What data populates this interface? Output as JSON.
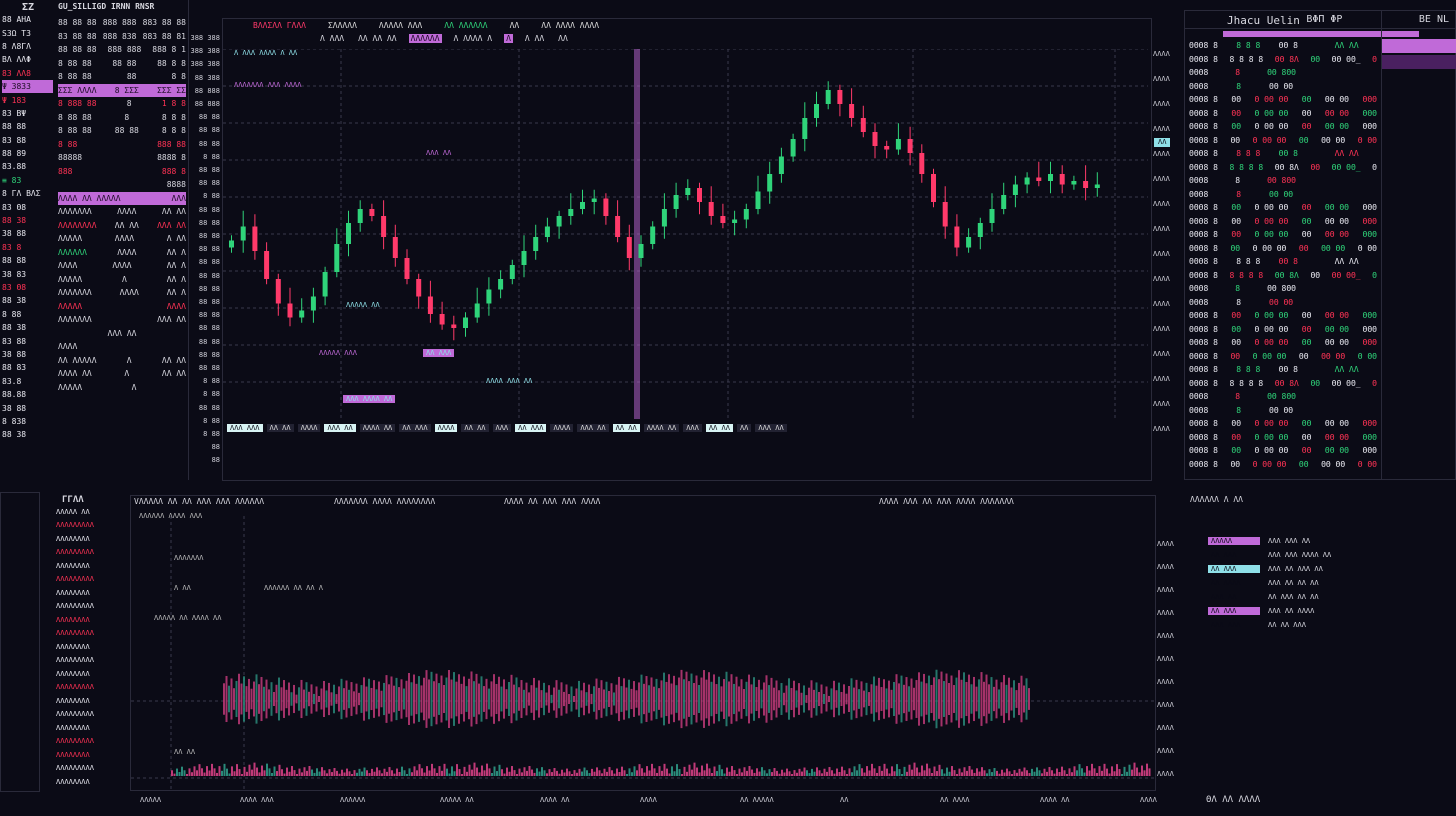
{
  "colors": {
    "bg": "#0b0b16",
    "up": "#2fd47a",
    "down": "#ff3a6a",
    "accent": "#c06ad8",
    "cyan": "#8fe0e8"
  },
  "left_mini": {
    "title": "ΣΖ",
    "rows": [
      {
        "t": "88 AHA",
        "c": "wht"
      },
      {
        "t": "S3Ω T3",
        "c": "wht"
      },
      {
        "t": "8 Λ8ΓΛ",
        "c": "wht"
      },
      {
        "t": "ΒΛ ΛΛΦ",
        "c": "wht"
      },
      {
        "t": "83 ΛΛ8",
        "c": "red"
      },
      {
        "t": "Ψ 3833",
        "c": "hl"
      },
      {
        "t": "Ψ 183",
        "c": "red"
      },
      {
        "t": "83 ΒΨ",
        "c": "wht"
      },
      {
        "t": "88 88",
        "c": "wht"
      },
      {
        "t": "83 88",
        "c": "wht"
      },
      {
        "t": "88 89",
        "c": "wht"
      },
      {
        "t": "83.88",
        "c": "wht"
      },
      {
        "t": "≡ 83",
        "c": "green"
      },
      {
        "t": "8 ΓΛ ΒΛΣ",
        "c": "wht"
      },
      {
        "t": "83 Θ8",
        "c": "wht"
      },
      {
        "t": "88 38",
        "c": "red"
      },
      {
        "t": "38 88",
        "c": "wht"
      },
      {
        "t": "83 8",
        "c": "red"
      },
      {
        "t": "88 88",
        "c": "wht"
      },
      {
        "t": "38 83",
        "c": "wht"
      },
      {
        "t": "83 Θ8",
        "c": "red"
      },
      {
        "t": "88 38",
        "c": "wht"
      },
      {
        "t": "8 88",
        "c": "wht"
      },
      {
        "t": "88 38",
        "c": "wht"
      },
      {
        "t": "83 88",
        "c": "wht"
      },
      {
        "t": "38 88",
        "c": "wht"
      },
      {
        "t": "88 83",
        "c": "wht"
      },
      {
        "t": "83.8",
        "c": "wht"
      },
      {
        "t": "88.88",
        "c": "wht"
      },
      {
        "t": "38 88",
        "c": "wht"
      },
      {
        "t": "8 838",
        "c": "wht"
      },
      {
        "t": "88 38",
        "c": "wht"
      }
    ]
  },
  "orderbook": {
    "title": "GU_SILLIGD IRNN RNSR",
    "header": [
      "88 88 88",
      "888 888",
      "883 88 88"
    ],
    "rows": [
      {
        "a": "83 88 88",
        "b": "888 838",
        "c": "883 88 81",
        "s": "hl"
      },
      {
        "a": "88 88 88",
        "b": "888 888",
        "c": "888 8 1",
        "s": ""
      },
      {
        "a": "8 88 88",
        "b": "88 88",
        "c": "88 8 8",
        "s": ""
      },
      {
        "a": "8 88 88",
        "b": "88",
        "c": "8 8",
        "s": ""
      },
      {
        "a": "ΣΣΣ ΛΛΛΛ",
        "b": "8 ΣΣΣ",
        "c": "ΣΣΣ ΣΣ",
        "s": "bar"
      },
      {
        "a": "8 888 88",
        "b": "8",
        "c": "1 8 8",
        "s": "red"
      },
      {
        "a": "8 88 88",
        "b": "8",
        "c": "8 8 8",
        "s": ""
      },
      {
        "a": "8 88 88",
        "b": "88 88",
        "c": "8 8 8",
        "s": ""
      },
      {
        "a": "8 88",
        "b": "",
        "c": "888 88",
        "s": "red"
      },
      {
        "a": "88888",
        "b": "",
        "c": "8888 8",
        "s": ""
      },
      {
        "a": "888",
        "b": "",
        "c": "888 8",
        "s": "red"
      },
      {
        "a": "",
        "b": "",
        "c": "8888",
        "s": ""
      },
      {
        "a": "ΛΛΛΛ ΛΛ ΛΛΛΛΛ",
        "b": "",
        "c": "ΛΛΛ",
        "s": "bar"
      },
      {
        "a": "ΛΛΛΛΛΛΛ",
        "b": "ΛΛΛΛ",
        "c": "ΛΛ ΛΛ",
        "s": ""
      },
      {
        "a": "ΛΛΛΛΛΛΛΛ",
        "b": "ΛΛ ΛΛ",
        "c": "ΛΛΛ ΛΛ",
        "s": "red"
      },
      {
        "a": "ΛΛΛΛΛ",
        "b": "ΛΛΛΛ",
        "c": "Λ ΛΛ",
        "s": ""
      },
      {
        "a": "ΛΛΛΛΛΛ",
        "b": "ΛΛΛΛ",
        "c": "ΛΛ Λ",
        "s": "green"
      },
      {
        "a": "ΛΛΛΛ",
        "b": "ΛΛΛΛ",
        "c": "ΛΛ Λ",
        "s": ""
      },
      {
        "a": "ΛΛΛΛΛ",
        "b": "Λ",
        "c": "ΛΛ Λ",
        "s": ""
      },
      {
        "a": "ΛΛΛΛΛΛΛ",
        "b": "ΛΛΛΛ",
        "c": "ΛΛ Λ",
        "s": ""
      },
      {
        "a": "ΛΛΛΛΛ",
        "b": "",
        "c": "ΛΛΛΛ",
        "s": "red"
      },
      {
        "a": "ΛΛΛΛΛΛΛ",
        "b": "",
        "c": "ΛΛΛ ΛΛ",
        "s": ""
      },
      {
        "a": "",
        "b": "ΛΛΛ ΛΛ",
        "c": "",
        "s": ""
      },
      {
        "a": "ΛΛΛΛ",
        "b": "",
        "c": "",
        "s": ""
      },
      {
        "a": "ΛΛ ΛΛΛΛΛ",
        "b": "Λ",
        "c": "ΛΛ ΛΛ",
        "s": ""
      },
      {
        "a": "ΛΛΛΛ ΛΛ",
        "b": "Λ",
        "c": "ΛΛ ΛΛ",
        "s": ""
      },
      {
        "a": "ΛΛΛΛΛ",
        "b": "Λ",
        "c": "",
        "s": ""
      }
    ]
  },
  "chart": {
    "toolbar": [
      "ΒΛΛΣΛΛ ΓΛΛΛ",
      "ΣΛΛΛΛΛ",
      "ΛΛΛΛΛ ΛΛΛ",
      "ΛΛ ΛΛΛΛΛΛ",
      "ΛΛ",
      "ΛΛ ΛΛΛΛ ΛΛΛΛ"
    ],
    "tabs": [
      "Λ ΛΛΛ",
      "ΛΛ ΛΛ ΛΛ",
      "ΛΛΛΛΛΛ",
      "Λ ΛΛΛΛ Λ",
      "Λ",
      "Λ ΛΛ",
      "ΛΛ"
    ],
    "left_axis": [
      "388 388",
      "388 388",
      "388 388",
      "88 388",
      "88 888",
      "88 888",
      "88 88",
      "88 88",
      "88 88",
      "8 88",
      "88 88",
      "88 88",
      "8 88",
      "88 88",
      "88 88",
      "88 88",
      "88 88",
      "88 88",
      "88 88",
      "88 88",
      "88 88",
      "88 88",
      "88 88",
      "88 88",
      "88 88",
      "88 88",
      "8 88",
      "8 88",
      "88 88",
      "8 88",
      "8 88",
      "88",
      "88"
    ],
    "right_axis": [
      "ΛΛΛΛ",
      "ΛΛΛΛ",
      "ΛΛΛΛ",
      "ΛΛΛΛ",
      "ΛΛΛΛ",
      "ΛΛΛΛ",
      "ΛΛΛΛ",
      "ΛΛΛΛ",
      "ΛΛΛΛ",
      "ΛΛΛΛ",
      "ΛΛΛΛ",
      "ΛΛΛΛ",
      "ΛΛΛΛ",
      "ΛΛΛΛ",
      "ΛΛΛΛ",
      "ΛΛΛΛ"
    ],
    "price_tag": "ΛΛ",
    "annotations": [
      "Λ ΛΛΛ ΛΛΛΛ Λ ΛΛ",
      "ΛΛΛΛΛΛΛ ΛΛΛ ΛΛΛΛ",
      "ΛΛΛΛΛ ΛΛ",
      "ΛΛ ΛΛΛ",
      "ΛΛΛΛΛ ΛΛΛ",
      "ΛΛΛ ΛΛΛΛ ΛΛ",
      "ΛΛΛΛ ΛΛΛ ΛΛ",
      "ΛΛΛ ΛΛ"
    ],
    "closes": [
      51,
      55,
      48,
      40,
      33,
      29,
      31,
      35,
      42,
      50,
      56,
      60,
      58,
      52,
      46,
      40,
      35,
      30,
      27,
      26,
      29,
      33,
      37,
      40,
      44,
      48,
      52,
      55,
      58,
      60,
      62,
      63,
      58,
      52,
      46,
      50,
      55,
      60,
      64,
      66,
      62,
      58,
      56,
      57,
      60,
      65,
      70,
      75,
      80,
      86,
      90,
      94,
      90,
      86,
      82,
      78,
      77,
      80,
      76,
      70,
      62,
      55,
      49,
      52,
      56,
      60,
      64,
      67,
      69,
      68,
      70,
      67,
      68,
      66,
      67
    ],
    "bottom_strip": [
      "ΛΛΛ ΛΛΛ",
      "ΛΛ ΛΛ",
      "ΛΛΛΛ",
      "ΛΛΛ ΛΛ",
      "ΛΛΛΛ ΛΛ",
      "ΛΛ ΛΛΛ",
      "ΛΛΛΛ",
      "ΛΛ ΛΛ",
      "ΛΛΛ",
      "ΛΛ ΛΛΛ",
      "ΛΛΛΛ",
      "ΛΛΛ ΛΛ",
      "ΛΛ ΛΛ",
      "ΛΛΛΛ ΛΛ",
      "ΛΛΛ",
      "ΛΛ ΛΛ",
      "ΛΛ",
      "ΛΛΛ ΛΛ"
    ]
  },
  "right_panel": {
    "title": "Jhacu Uelin",
    "badge": "ΒΦΠ ΦΡ",
    "side": "ΒΕ ΝL",
    "rows": [
      [
        "ΘΘΘ8 8",
        "8 8 8",
        "ΘΘ 8",
        "",
        "ΛΛ ΛΛ",
        ""
      ],
      [
        "ΘΘΘ8 8",
        "8 8 8 8",
        "ΘΘ 8Λ",
        "ΘΘ",
        "ΘΘ ΘΘ_",
        "Θ"
      ],
      [
        "ΘΘΘ8",
        "8",
        "ΘΘ 8ΘΘ",
        "",
        "",
        ""
      ],
      [
        "ΘΘΘ8",
        "8",
        "ΘΘ ΘΘ",
        "",
        "",
        ""
      ],
      [
        "ΘΘΘ8 8",
        "ΘΘ",
        "Θ ΘΘ ΘΘ",
        "ΘΘ",
        "ΘΘ ΘΘ",
        "ΘΘΘ"
      ],
      [
        "ΘΘΘ8 8",
        "ΘΘ",
        "Θ ΘΘ ΘΘ",
        "ΘΘ",
        "ΘΘ ΘΘ",
        "ΘΘΘ"
      ],
      [
        "ΘΘΘ8 8",
        "ΘΘ",
        "Θ ΘΘ ΘΘ",
        "ΘΘ",
        "ΘΘ ΘΘ",
        "ΘΘΘ"
      ],
      [
        "ΘΘΘ8 8",
        "ΘΘ",
        "Θ ΘΘ ΘΘ",
        "ΘΘ",
        "ΘΘ ΘΘ",
        "Θ ΘΘ"
      ]
    ]
  },
  "bottom": {
    "left_list_title": "ΓΓΛΛ",
    "left_list": [
      "ΛΛΛΛΛ ΛΛ",
      "ΛΛΛΛΛΛΛΛΛ",
      "ΛΛΛΛΛΛΛΛ",
      "ΛΛΛΛΛΛΛΛΛ",
      "ΛΛΛΛΛΛΛΛ",
      "ΛΛΛΛΛΛΛΛΛ",
      "ΛΛΛΛΛΛΛΛ",
      "ΛΛΛΛΛΛΛΛΛ",
      "ΛΛΛΛΛΛΛΛ",
      "ΛΛΛΛΛΛΛΛΛ",
      "ΛΛΛΛΛΛΛΛ",
      "ΛΛΛΛΛΛΛΛΛ",
      "ΛΛΛΛΛΛΛΛ",
      "ΛΛΛΛΛΛΛΛΛ",
      "ΛΛΛΛΛΛΛΛ",
      "ΛΛΛΛΛΛΛΛΛ",
      "ΛΛΛΛΛΛΛΛ",
      "ΛΛΛΛΛΛΛΛΛ",
      "ΛΛΛΛΛΛΛΛ",
      "ΛΛΛΛΛΛΛΛΛ",
      "ΛΛΛΛΛΛΛΛ"
    ],
    "titles": [
      "VΛΛΛΛΛ ΛΛ ΛΛ ΛΛΛ ΛΛΛ ΛΛΛΛΛΛ",
      "ΛΛΛΛΛΛΛ ΛΛΛΛ ΛΛΛΛΛΛΛΛ",
      "ΛΛΛΛ ΛΛ ΛΛΛ ΛΛΛ ΛΛΛΛ",
      "ΛΛΛΛ ΛΛΛ ΛΛ ΛΛΛ ΛΛΛΛ ΛΛΛΛΛΛΛ"
    ],
    "notes": [
      "ΛΛΛΛΛΛ ΛΛΛΛ ΛΛΛ",
      "ΛΛΛΛΛΛΛ",
      "Λ ΛΛ",
      "ΛΛΛΛΛΛ ΛΛ ΛΛ Λ",
      "ΛΛΛΛΛ ΛΛ ΛΛΛΛ ΛΛ",
      "ΛΛ ΛΛ"
    ],
    "axis": [
      "ΛΛΛΛ",
      "ΛΛΛΛ",
      "ΛΛΛΛ",
      "ΛΛΛΛ",
      "ΛΛΛΛ",
      "ΛΛΛΛ",
      "ΛΛΛΛ",
      "ΛΛΛΛ",
      "ΛΛΛΛ",
      "ΛΛΛΛ",
      "ΛΛΛΛ"
    ],
    "time_axis": [
      "ΛΛΛΛΛ",
      "ΛΛΛΛ ΛΛΛ",
      "ΛΛΛΛΛΛ",
      "ΛΛΛΛΛ ΛΛ",
      "ΛΛΛΛ ΛΛ",
      "ΛΛΛΛ",
      "ΛΛ ΛΛΛΛΛ",
      "ΛΛ",
      "ΛΛ ΛΛΛΛ",
      "ΛΛΛΛ ΛΛ",
      "ΛΛΛΛ"
    ],
    "right_title": "ΛΛΛΛΛΛ Λ ΛΛ",
    "right_rows": [
      {
        "btn": "ΛΛΛΛΛ",
        "t": "ΛΛΛ ΛΛΛ ΛΛ",
        "c": "accent"
      },
      {
        "btn": "ΛΛ ΛΛΛ",
        "t": "ΛΛΛ ΛΛΛ ΛΛΛΛ ΛΛ",
        "c": "green"
      },
      {
        "btn": "ΛΛ ΛΛΛ",
        "t": "ΛΛΛ ΛΛ ΛΛΛ ΛΛ",
        "c": "cyan"
      },
      {
        "btn": "ΛΛ ΛΛΛΛ",
        "t": "ΛΛΛ ΛΛ ΛΛ ΛΛ",
        "c": "red"
      },
      {
        "btn": "ΛΛΛ ΛΛ",
        "t": "ΛΛ ΛΛΛ ΛΛ ΛΛ",
        "c": "green"
      },
      {
        "btn": "ΛΛ ΛΛΛ",
        "t": "ΛΛΛ ΛΛ ΛΛΛΛ",
        "c": "accent"
      },
      {
        "btn": "ΛΛΛ ΛΛΛ",
        "t": "ΛΛ ΛΛ ΛΛΛ",
        "c": "red"
      }
    ],
    "footer": "ΘΛ ΛΛ ΛΛΛΛ"
  }
}
